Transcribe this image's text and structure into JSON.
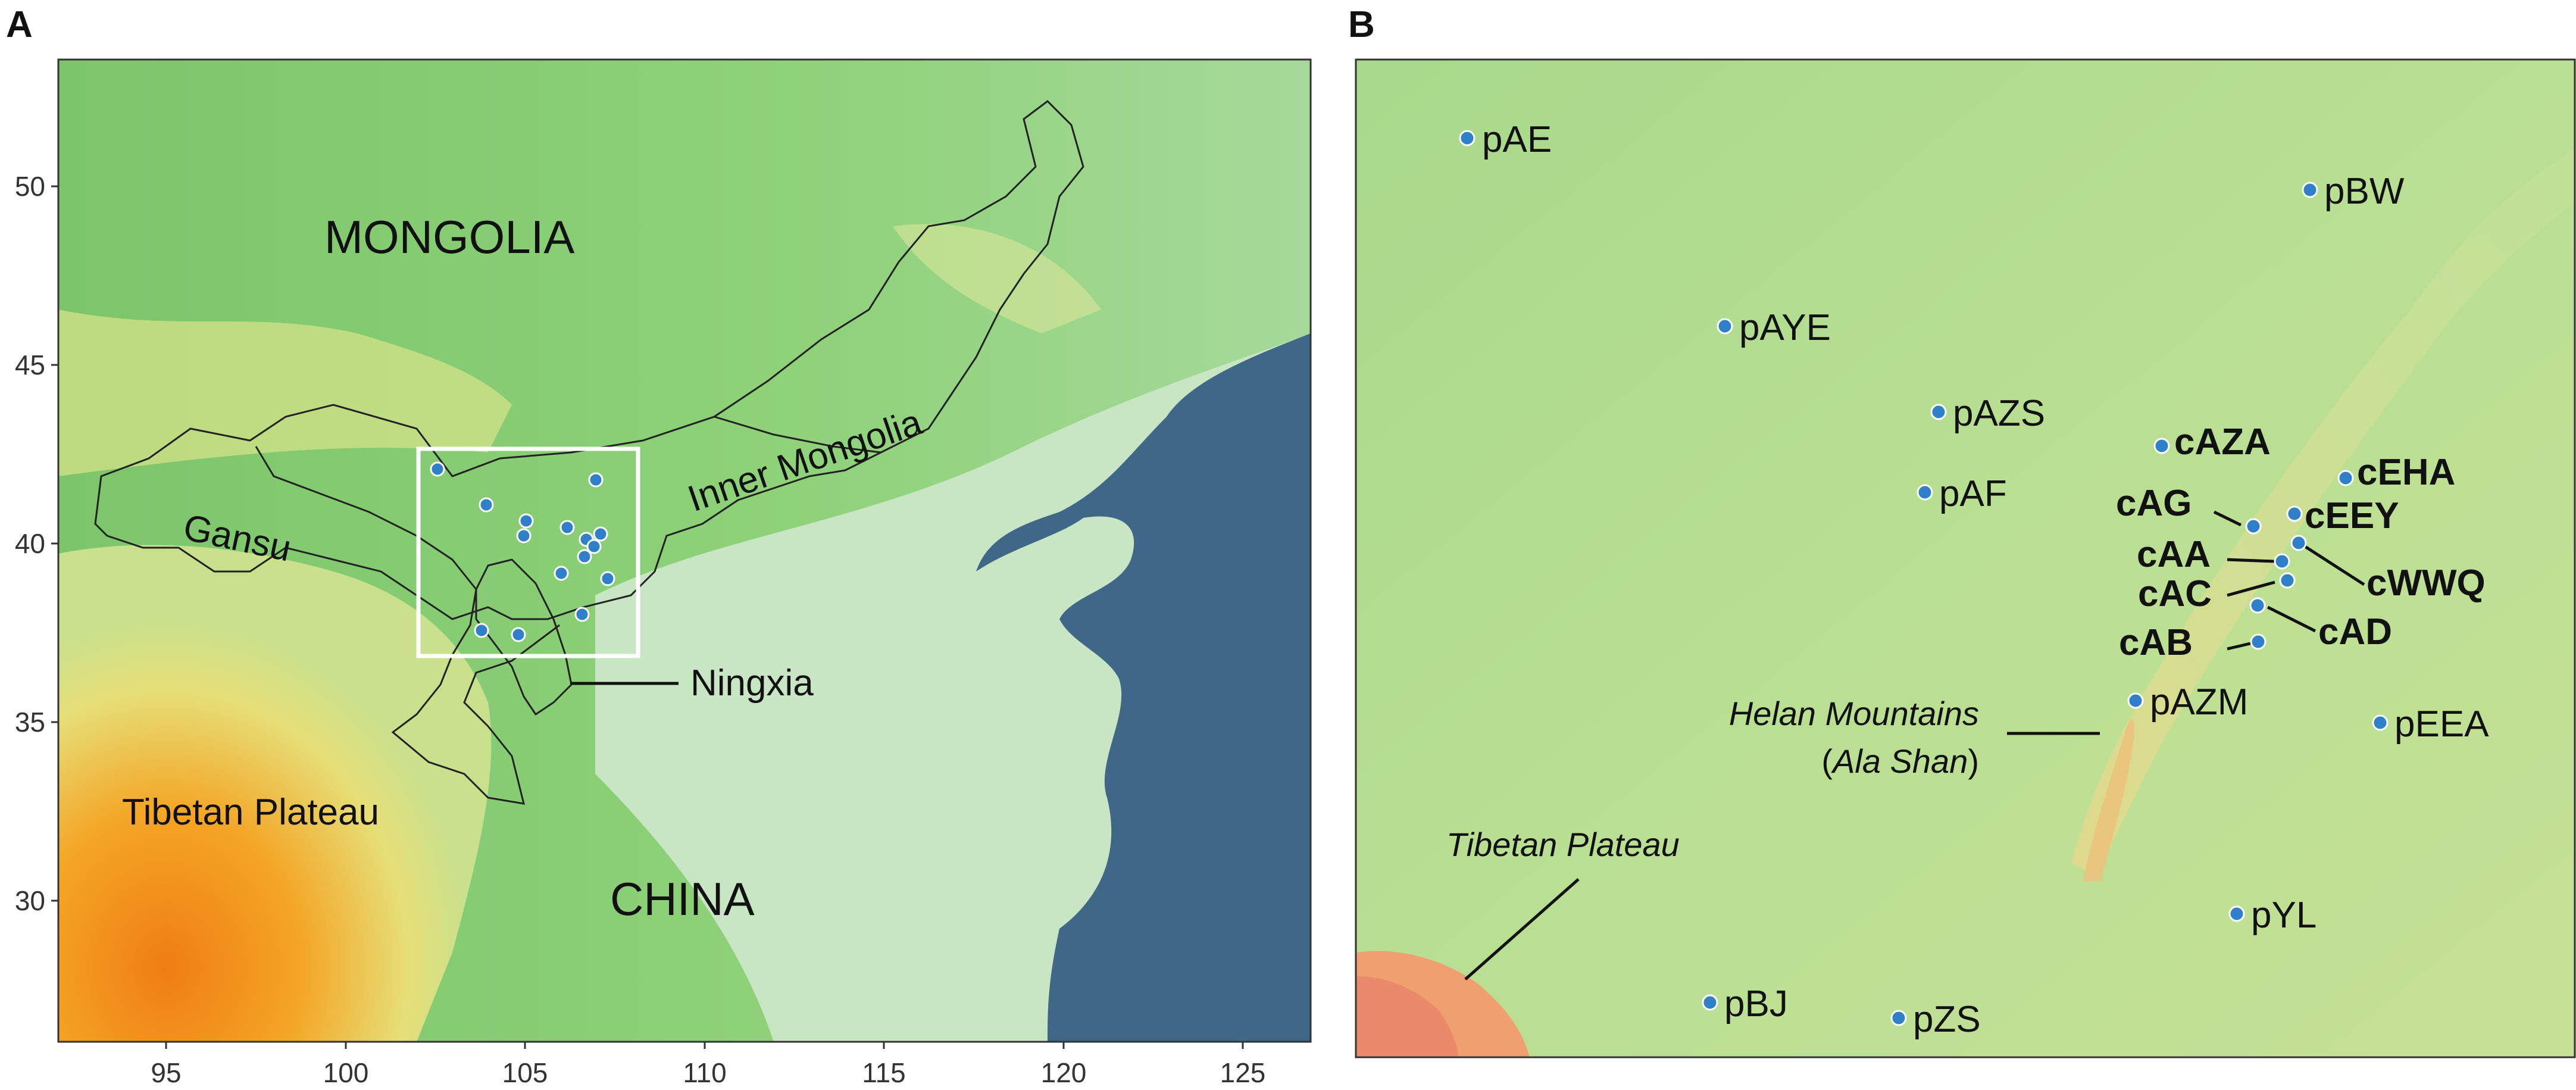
{
  "panels": {
    "a": {
      "letter": "A",
      "x_ticks": [
        "95",
        "100",
        "105",
        "110",
        "115",
        "120",
        "125"
      ],
      "y_ticks": [
        "50",
        "45",
        "40",
        "35",
        "30"
      ],
      "labels": {
        "mongolia": "MONGOLIA",
        "china": "CHINA",
        "inner_mongolia": "Inner Mongolia",
        "gansu": "Gansu",
        "ningxia": "Ningxia",
        "tibetan_plateau": "Tibetan Plateau"
      }
    },
    "b": {
      "letter": "B",
      "sites_plain": [
        "pAE",
        "pBW",
        "pAYE",
        "pAZS",
        "pAF",
        "pAZM",
        "pEEA",
        "pYL",
        "pBJ",
        "pZS"
      ],
      "sites_bold": [
        "cAZA",
        "cEHA",
        "cAG",
        "cEEY",
        "cAA",
        "cWWQ",
        "cAC",
        "cAD",
        "cAB"
      ],
      "labels": {
        "helan_line1": "Helan Mountains",
        "helan_line2_open": "(",
        "helan_line2_name": "Ala Shan",
        "helan_line2_close": ")",
        "tibetan_plateau": "Tibetan Plateau"
      }
    }
  },
  "colors": {
    "sea": "#3f6888",
    "lowland_green": "#8fd27a",
    "plain_pale": "#c9e6c4",
    "plateau_orange": "#f29a1e",
    "plateau_yellow": "#e8e07a",
    "site_point": "#2f7fc9",
    "border_line": "#222222",
    "inset_box": "#ffffff"
  }
}
